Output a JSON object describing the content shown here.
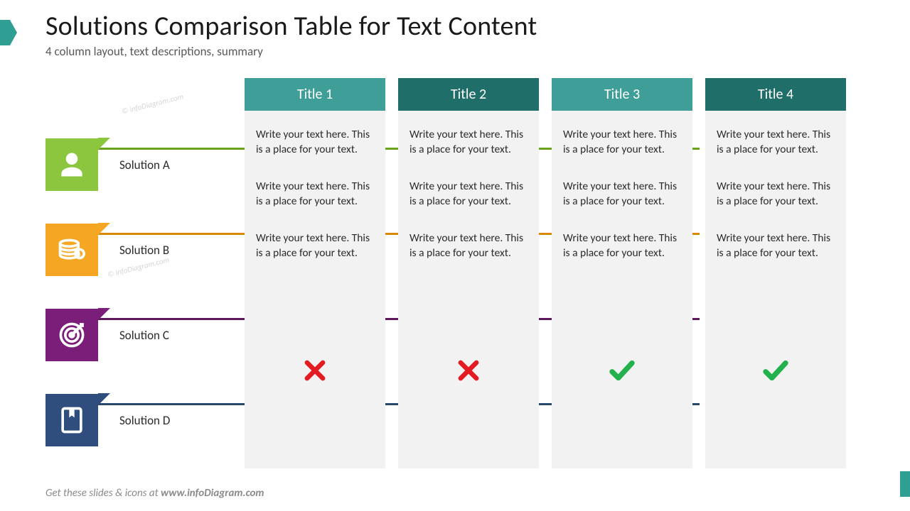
{
  "header": {
    "title": "Solutions Comparison Table for Text Content",
    "subtitle": "4 column layout, text descriptions, summary",
    "title_color": "#1a1a1a",
    "subtitle_color": "#595959",
    "title_fontsize": 38,
    "subtitle_fontsize": 17
  },
  "accent_color": "#2f9e93",
  "watermark_text": "© infoDiagram.com",
  "footer": {
    "prefix": "Get these slides & icons at ",
    "bold": "www.infoDiagram.com",
    "color": "#8a8a8a"
  },
  "rows": [
    {
      "label": "Solution A",
      "icon": "person",
      "color": "#8cc63f",
      "divider_color": "#6aa21a"
    },
    {
      "label": "Solution B",
      "icon": "coins",
      "color": "#f5a623",
      "divider_color": "#d98a00"
    },
    {
      "label": "Solution C",
      "icon": "target",
      "color": "#7b1e7a",
      "divider_color": "#5d175c"
    },
    {
      "label": "Solution D",
      "icon": "bookmark",
      "color": "#2f4e7d",
      "divider_color": "#27476f"
    }
  ],
  "columns": [
    {
      "title": "Title 1",
      "header_color": "#3f9e97",
      "header_dark": "#2e8079"
    },
    {
      "title": "Title 2",
      "header_color": "#1f6e69",
      "header_dark": "#155a55"
    },
    {
      "title": "Title 3",
      "header_color": "#3f9e97",
      "header_dark": "#2e8079"
    },
    {
      "title": "Title 4",
      "header_color": "#1f6e69",
      "header_dark": "#155a55"
    }
  ],
  "cell_text": "Write your text here. This is a place for your text.",
  "cells": [
    [
      "text",
      "text",
      "text",
      "text"
    ],
    [
      "text",
      "text",
      "text",
      "text"
    ],
    [
      "text",
      "text",
      "text",
      "text"
    ],
    [
      "cross",
      "cross",
      "check",
      "check"
    ]
  ],
  "column_body_bg": "#f2f2f2",
  "check_color": "#22b14c",
  "cross_color": "#e31b23",
  "text_color": "#2b2b2b",
  "cell_fontsize": 15.5
}
